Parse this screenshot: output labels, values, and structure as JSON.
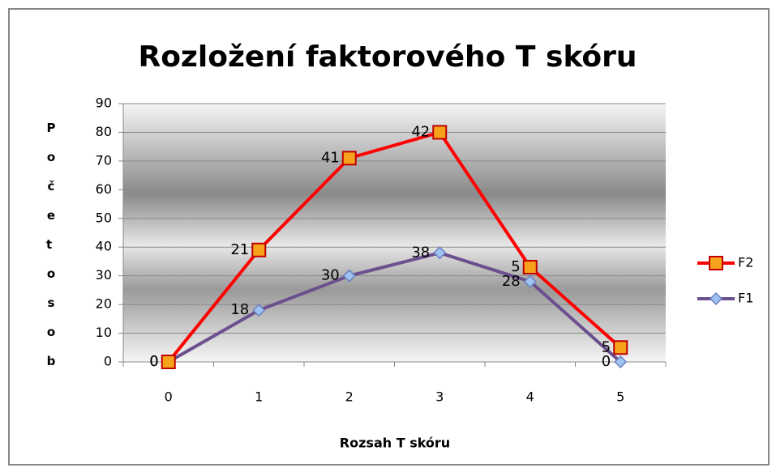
{
  "chart_data": {
    "type": "line",
    "stacked": true,
    "title": "Rozložení  faktorového T skóru",
    "x_label": "Rozsah T skóru",
    "y_label": "Počet osob",
    "categories": [
      "0",
      "1",
      "2",
      "3",
      "4",
      "5"
    ],
    "series": [
      {
        "name": "F1",
        "color": "#6b4f8e",
        "marker_color": "#9ec3f0",
        "values": [
          0,
          18,
          30,
          38,
          28,
          0
        ]
      },
      {
        "name": "F2",
        "color": "#ff0000",
        "marker_color": "#f7a21b",
        "values": [
          0,
          21,
          41,
          42,
          5,
          5
        ]
      }
    ],
    "ylim": [
      0,
      90
    ],
    "yticks": [
      0,
      10,
      20,
      30,
      40,
      50,
      60,
      70,
      80,
      90
    ],
    "grid": true,
    "legend": "right"
  }
}
